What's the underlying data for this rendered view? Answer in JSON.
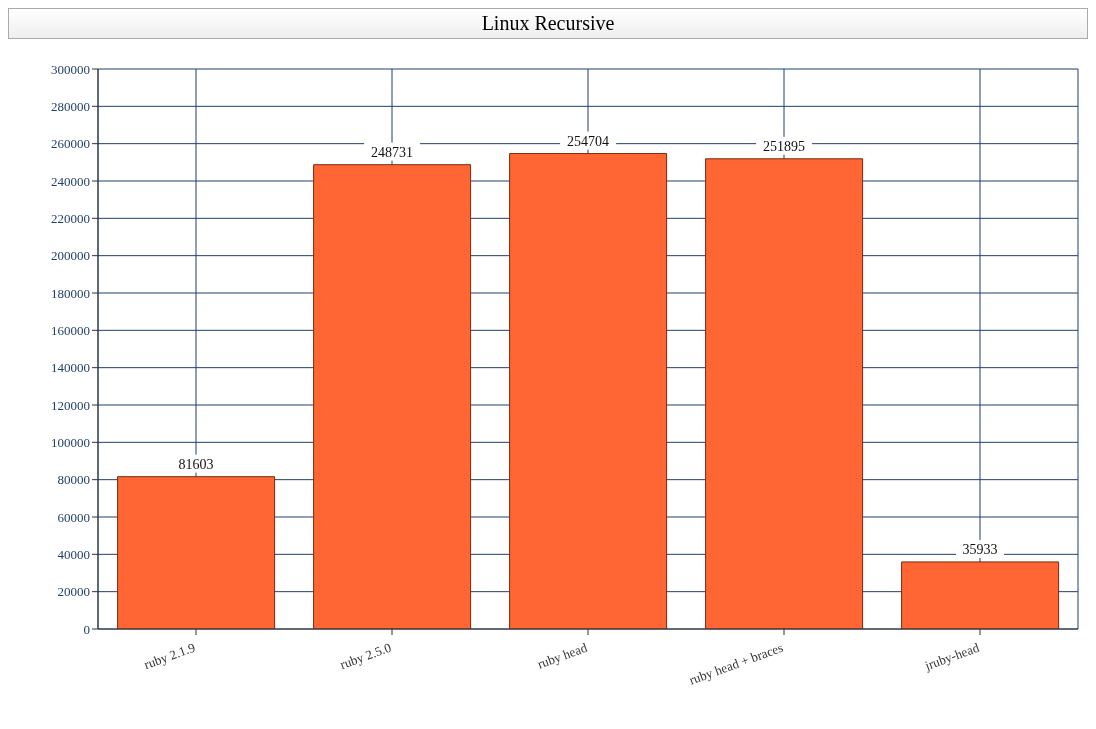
{
  "chart_data": {
    "type": "bar",
    "title": "Linux Recursive",
    "categories": [
      "ruby 2.1.9",
      "ruby 2.5.0",
      "ruby head",
      "ruby head + braces",
      "jruby-head"
    ],
    "values": [
      81603,
      248731,
      254704,
      251895,
      35933
    ],
    "color": "#ff6633",
    "ylim": [
      0,
      300000
    ],
    "yticks": [
      0,
      20000,
      40000,
      60000,
      80000,
      100000,
      120000,
      140000,
      160000,
      180000,
      200000,
      220000,
      240000,
      260000,
      280000,
      300000
    ],
    "grid": true,
    "data_labels": true
  }
}
